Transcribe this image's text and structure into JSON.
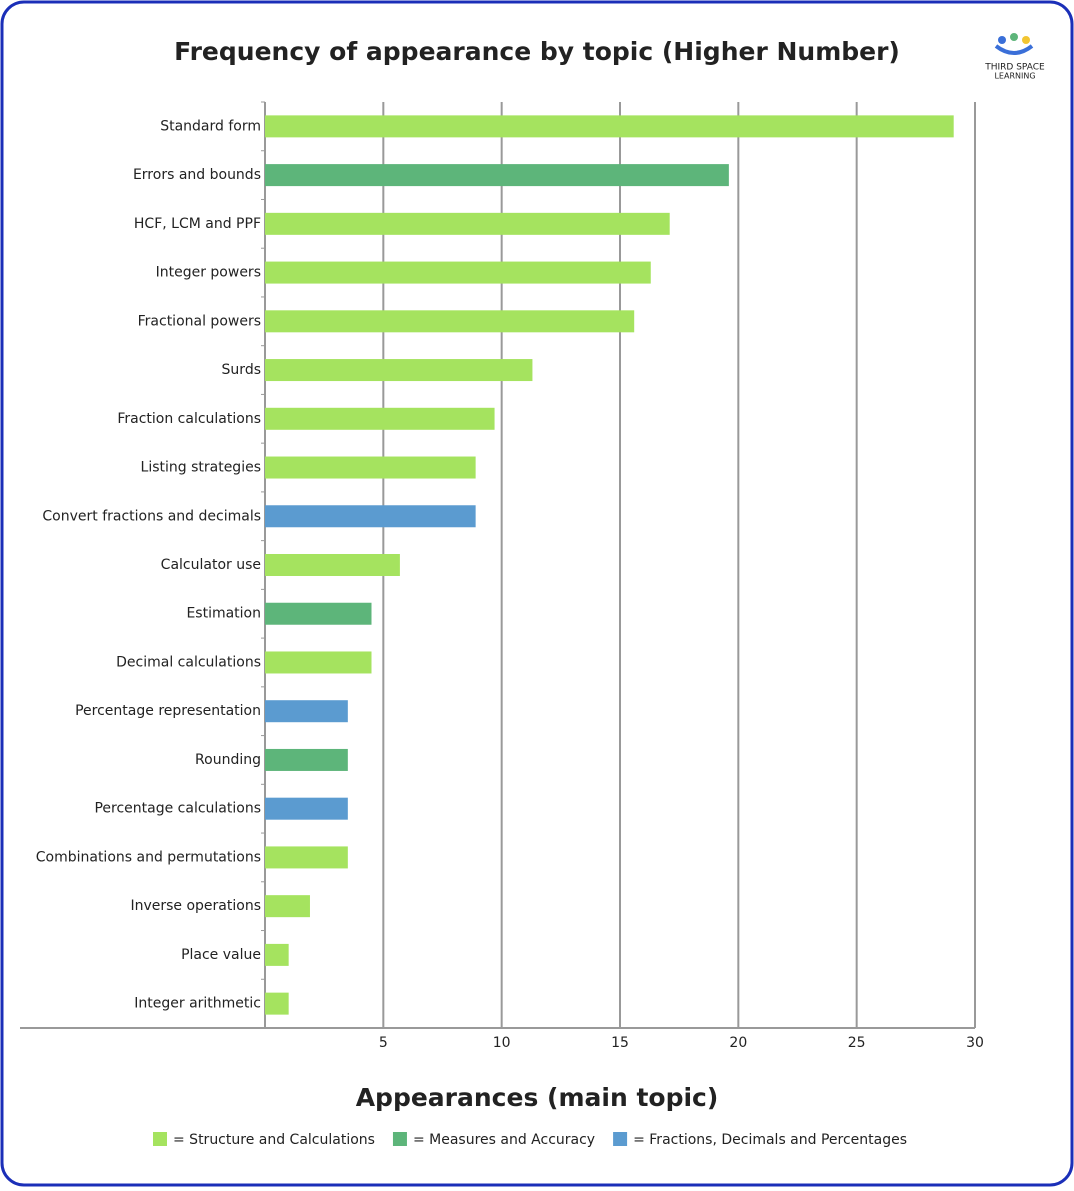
{
  "chart_data": {
    "type": "bar",
    "orientation": "horizontal",
    "title": "Frequency of appearance by topic (Higher Number)",
    "x_label": "Appearances (main topic)",
    "categories": [
      "Standard form",
      "Errors and bounds",
      "HCF, LCM and PPF",
      "Integer powers",
      "Fractional powers",
      "Surds",
      "Fraction calculations",
      "Listing strategies",
      "Convert fractions and decimals",
      "Calculator use",
      "Estimation",
      "Decimal calculations",
      "Percentage representation",
      "Rounding",
      "Percentage calculations",
      "Combinations and permutations",
      "Inverse operations",
      "Place value",
      "Integer arithmetic"
    ],
    "series": [
      {
        "name": "= Structure and Calculations",
        "color": "#a5e35f",
        "values": [
          29.1,
          null,
          17.1,
          16.3,
          15.6,
          11.3,
          9.7,
          8.9,
          null,
          5.7,
          null,
          4.5,
          null,
          null,
          null,
          3.5,
          1.9,
          1.0,
          1.0
        ]
      },
      {
        "name": "= Measures and Accuracy",
        "color": "#5db57a",
        "values": [
          null,
          19.6,
          null,
          null,
          null,
          null,
          null,
          null,
          null,
          null,
          4.5,
          null,
          null,
          3.5,
          null,
          null,
          null,
          null,
          null
        ]
      },
      {
        "name": "= Fractions, Decimals and Percentages",
        "color": "#5b9bd0",
        "values": [
          null,
          null,
          null,
          null,
          null,
          null,
          null,
          null,
          8.9,
          null,
          null,
          null,
          3.5,
          null,
          3.5,
          null,
          null,
          null,
          null
        ]
      }
    ],
    "xlim": [
      0,
      30
    ],
    "xticks": [
      5,
      10,
      15,
      20,
      25,
      30
    ],
    "grid": true,
    "legend": "bottom"
  },
  "logo": {
    "line1": "THIRD SPACE",
    "line2": "LEARNING"
  }
}
